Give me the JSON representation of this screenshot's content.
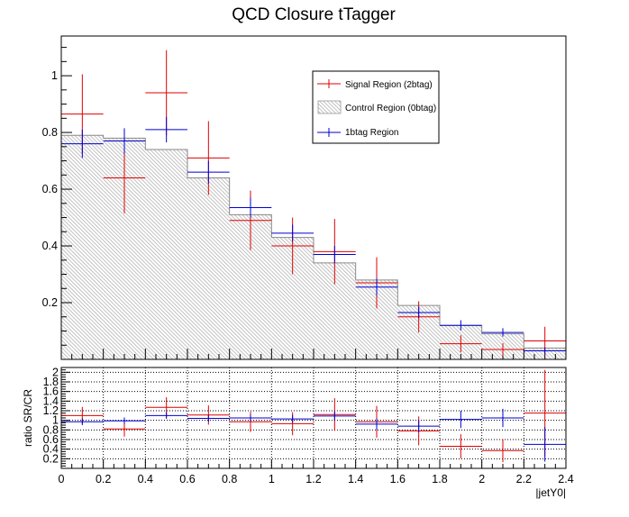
{
  "chart_data": [
    {
      "type": "histogram",
      "title": "QCD Closure tTagger",
      "xlabel": "",
      "ylabel": "",
      "xlim": [
        0,
        2.4
      ],
      "ylim": [
        0,
        1.14
      ],
      "bin_edges": [
        0,
        0.2,
        0.4,
        0.6,
        0.8,
        1.0,
        1.2,
        1.4,
        1.6,
        1.8,
        2.0,
        2.2,
        2.4
      ],
      "x_ticks_major": [
        0,
        0.2,
        0.4,
        0.6,
        0.8,
        1.0,
        1.2,
        1.4,
        1.6,
        1.8,
        2.0,
        2.2,
        2.4
      ],
      "y_ticks": [
        0.2,
        0.4,
        0.6,
        0.8,
        1
      ],
      "y_tick_labels": [
        "0.2",
        "0.4",
        "0.6",
        "0.8",
        "1"
      ],
      "grid": false,
      "legend_position": "top-right",
      "series": [
        {
          "name": "Control Region (0btag)",
          "style": "hatched-fill",
          "color": "#9a9a9a",
          "values": [
            0.79,
            0.78,
            0.74,
            0.64,
            0.51,
            0.43,
            0.34,
            0.28,
            0.19,
            0.12,
            0.09,
            0.04
          ]
        },
        {
          "name": "Signal Region (2btag)",
          "style": "error-bars",
          "color": "#e00000",
          "values": [
            0.865,
            0.64,
            0.94,
            0.71,
            0.49,
            0.4,
            0.38,
            0.27,
            0.15,
            0.055,
            0.035,
            0.065
          ],
          "errors": [
            0.14,
            0.125,
            0.15,
            0.13,
            0.105,
            0.1,
            0.115,
            0.09,
            0.055,
            0.03,
            0.022,
            0.05
          ]
        },
        {
          "name": "1btag Region",
          "style": "error-bars",
          "color": "#0000d0",
          "values": [
            0.76,
            0.77,
            0.81,
            0.66,
            0.535,
            0.445,
            0.37,
            0.255,
            0.165,
            0.12,
            0.095,
            0.03
          ],
          "errors": [
            0.05,
            0.045,
            0.045,
            0.04,
            0.035,
            0.03,
            0.03,
            0.03,
            0.02,
            0.018,
            0.015,
            0.012
          ]
        }
      ]
    },
    {
      "type": "histogram",
      "title": "",
      "xlabel": "|jetY0|",
      "ylabel": "ratio SR/CR",
      "xlim": [
        0,
        2.4
      ],
      "ylim": [
        0,
        2.1
      ],
      "bin_edges": [
        0,
        0.2,
        0.4,
        0.6,
        0.8,
        1.0,
        1.2,
        1.4,
        1.6,
        1.8,
        2.0,
        2.2,
        2.4
      ],
      "x_ticks_major": [
        0,
        0.2,
        0.4,
        0.6,
        0.8,
        1.0,
        1.2,
        1.4,
        1.6,
        1.8,
        2.0,
        2.2,
        2.4
      ],
      "x_tick_labels": [
        "0",
        "0.2",
        "0.4",
        "0.6",
        "0.8",
        "1",
        "1.2",
        "1.4",
        "1.6",
        "1.8",
        "2",
        "2.2",
        "2.4"
      ],
      "y_ticks": [
        0.2,
        0.4,
        0.6,
        0.8,
        1,
        1.2,
        1.4,
        1.6,
        1.8,
        2
      ],
      "y_tick_labels": [
        "0.2",
        "0.4",
        "0.6",
        "0.8",
        "1",
        "1.2",
        "1.4",
        "1.6",
        "1.8",
        "2"
      ],
      "grid": true,
      "series": [
        {
          "name": "Signal Region (2btag)",
          "color": "#e00000",
          "values": [
            1.1,
            0.82,
            1.27,
            1.11,
            0.97,
            0.93,
            1.12,
            0.97,
            0.78,
            0.46,
            0.37,
            1.15
          ],
          "errors": [
            0.18,
            0.16,
            0.21,
            0.2,
            0.21,
            0.24,
            0.34,
            0.33,
            0.3,
            0.25,
            0.24,
            0.9
          ]
        },
        {
          "name": "1btag Region",
          "color": "#0000d0",
          "values": [
            0.97,
            0.99,
            1.1,
            1.04,
            1.05,
            1.03,
            1.09,
            0.92,
            0.88,
            1.02,
            1.05,
            0.5
          ],
          "errors": [
            0.07,
            0.07,
            0.07,
            0.07,
            0.07,
            0.08,
            0.1,
            0.12,
            0.13,
            0.18,
            0.19,
            0.36
          ]
        }
      ]
    }
  ]
}
